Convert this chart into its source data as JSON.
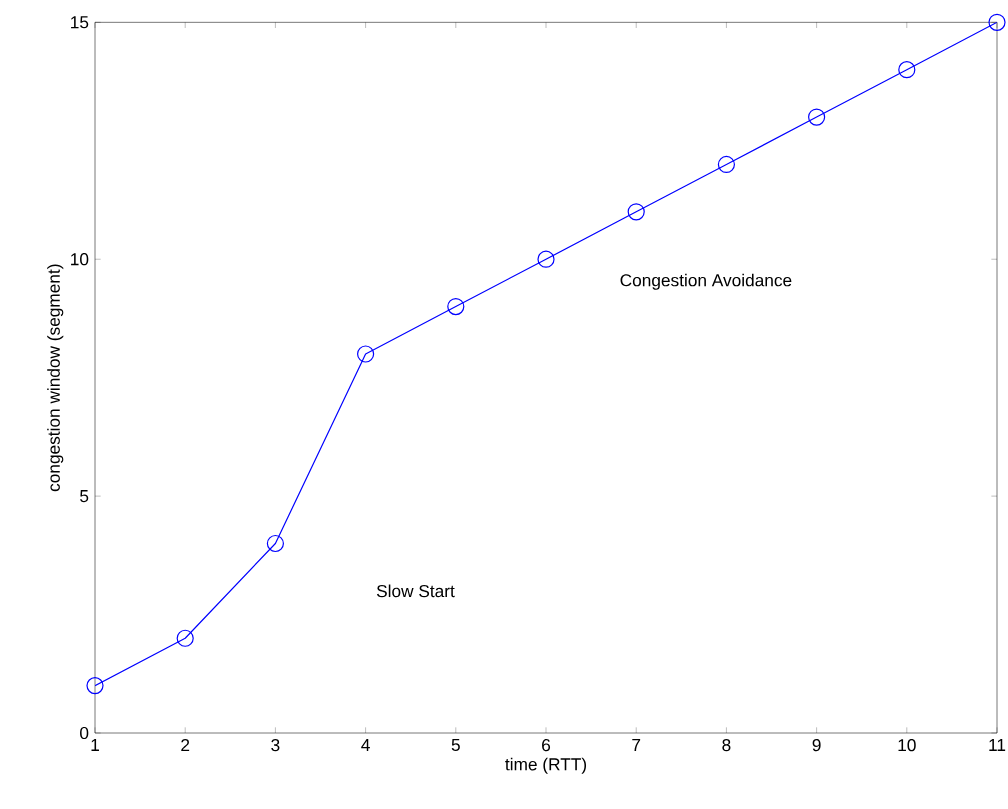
{
  "chart_data": {
    "type": "line",
    "xlabel": "time (RTT)",
    "ylabel": "congestion window (segment)",
    "x": [
      1,
      2,
      3,
      4,
      5,
      6,
      7,
      8,
      9,
      10,
      11
    ],
    "series": [
      {
        "color": "#0000ff",
        "values": [
          1,
          2,
          4,
          8,
          9,
          10,
          11,
          12,
          13,
          14,
          15
        ]
      }
    ],
    "xlim": [
      1,
      11
    ],
    "xticks": [
      1,
      2,
      3,
      4,
      5,
      6,
      7,
      8,
      9,
      10,
      11
    ],
    "ylim": [
      0,
      15
    ],
    "yticks": [
      0,
      5,
      10,
      15
    ],
    "grid": false,
    "marker": "circle",
    "line_style": "solid",
    "annotations": [
      "Slow Start",
      "Congestion Avoidance"
    ]
  }
}
